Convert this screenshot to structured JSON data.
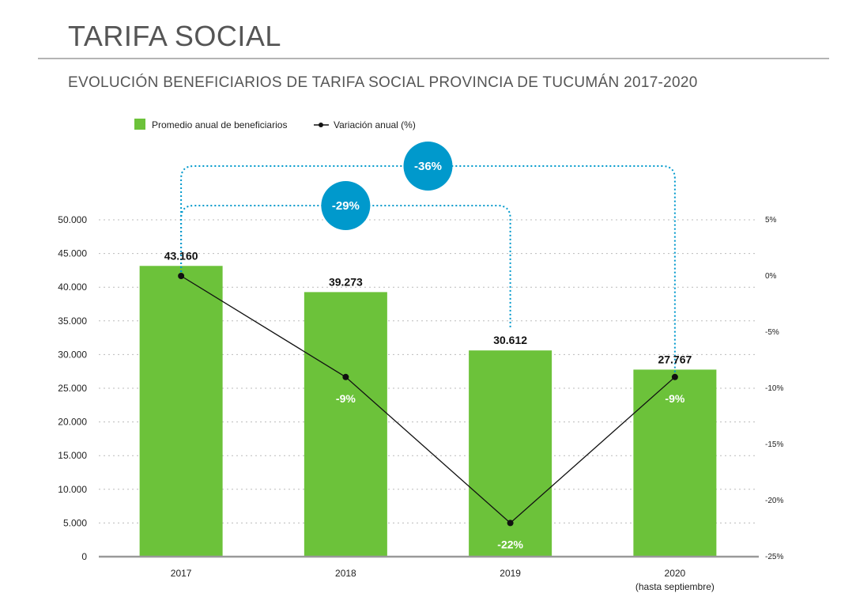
{
  "header": {
    "title": "TARIFA SOCIAL",
    "subtitle": "EVOLUCIÓN BENEFICIARIOS DE TARIFA SOCIAL PROVINCIA DE TUCUMÁN 2017-2020"
  },
  "colors": {
    "bar": "#6cc23a",
    "line": "#111111",
    "bubble": "#0099cc",
    "grid": "#bbbbbb",
    "baseline": "#999999"
  },
  "chart_data": {
    "type": "bar",
    "categories": [
      "2017",
      "2018",
      "2019",
      "2020"
    ],
    "category_sublabels": [
      "",
      "",
      "",
      "(hasta septiembre)"
    ],
    "legend_placement": "top-left",
    "grid": true,
    "series": [
      {
        "name": "Promedio anual de beneficiarios",
        "type": "bar",
        "axis": "left",
        "values": [
          43160,
          39273,
          30612,
          27767
        ],
        "labels": [
          "43.160",
          "39.273",
          "30.612",
          "27.767"
        ]
      },
      {
        "name": "Variación anual (%)",
        "type": "line",
        "axis": "right",
        "values": [
          0,
          -9,
          -22,
          -9
        ],
        "labels": [
          "",
          "-9%",
          "-22%",
          "-9%"
        ]
      }
    ],
    "y_left": {
      "lim": [
        0,
        50000
      ],
      "ticks": [
        0,
        5000,
        10000,
        15000,
        20000,
        25000,
        30000,
        35000,
        40000,
        45000,
        50000
      ],
      "tick_labels": [
        "0",
        "5.000",
        "10.000",
        "15.000",
        "20.000",
        "25.000",
        "30.000",
        "35.000",
        "40.000",
        "45.000",
        "50.000"
      ]
    },
    "y_right": {
      "lim": [
        -25,
        5
      ],
      "ticks": [
        5,
        0,
        -5,
        -10,
        -15,
        -20,
        -25
      ],
      "tick_labels": [
        "5%",
        "0%",
        "-5%",
        "-10%",
        "-15%",
        "-20%",
        "-25%"
      ]
    },
    "annotations": [
      {
        "from": "2017",
        "to": "2019",
        "label": "-29%"
      },
      {
        "from": "2017",
        "to": "2020",
        "label": "-36%"
      }
    ]
  }
}
